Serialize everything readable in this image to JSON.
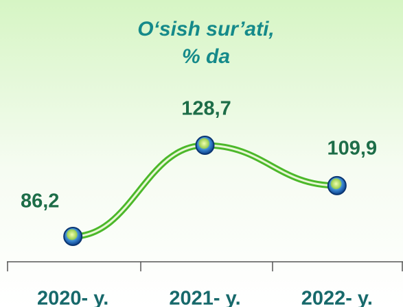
{
  "chart_data": {
    "type": "line",
    "title": [
      "O‘sish sur’ati,",
      "% da"
    ],
    "categories": [
      "2020- y.",
      "2021- y.",
      "2022- y."
    ],
    "series": [
      {
        "color": "#4cb82a",
        "values": [
          86.2,
          128.7,
          109.9
        ],
        "value_labels": [
          "86,2",
          "128,7",
          "109,9"
        ]
      }
    ]
  }
}
